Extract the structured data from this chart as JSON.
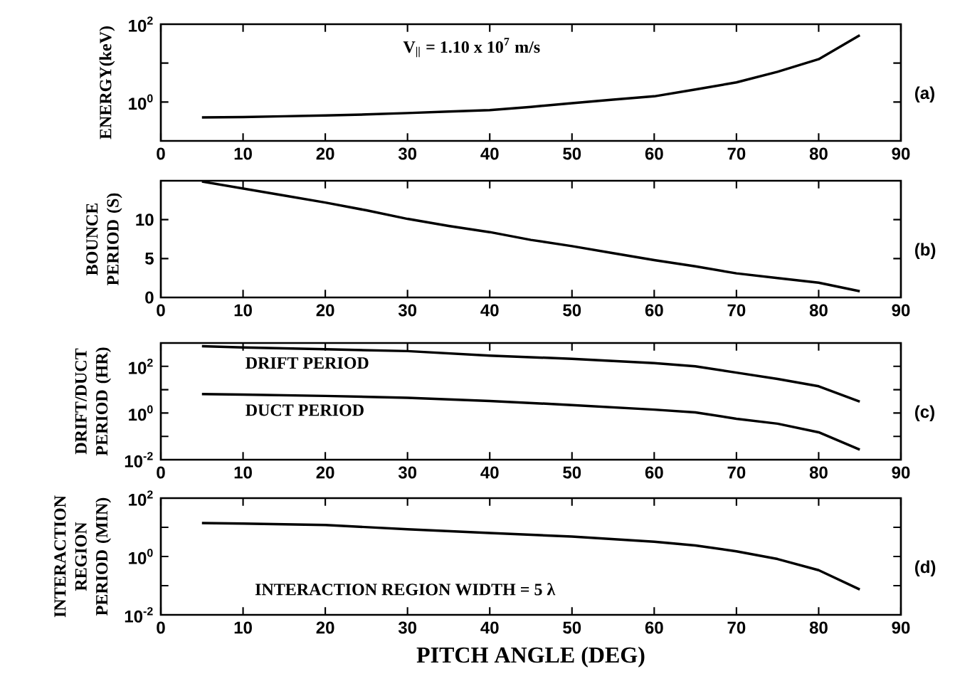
{
  "chart_data": [
    {
      "type": "line",
      "title": "(a)",
      "ylabel": "ENERGY(keV)",
      "annotations": [
        "V$_{||}$ = 1.10 x 10$^{7}$ m/s"
      ],
      "log": "y",
      "x": [
        5,
        10,
        15,
        20,
        25,
        30,
        35,
        40,
        45,
        50,
        55,
        60,
        65,
        70,
        75,
        80,
        85
      ],
      "values": [
        0.4,
        0.41,
        0.43,
        0.45,
        0.48,
        0.52,
        0.57,
        0.62,
        0.75,
        0.93,
        1.15,
        1.4,
        2.1,
        3.2,
        6,
        12.6,
        52
      ],
      "color": "#000000",
      "xlim": [
        0,
        90
      ],
      "xticks": [
        0,
        10,
        20,
        30,
        40,
        50,
        60,
        70,
        80,
        90
      ],
      "ylim": [
        0.1,
        100
      ],
      "yticks": [
        {
          "value": 0.1,
          "label": null
        },
        {
          "value": 1,
          "label": "10$^{0}$"
        },
        {
          "value": 10,
          "label": null
        },
        {
          "value": 100,
          "label": "10$^{2}$"
        }
      ]
    },
    {
      "type": "line",
      "title": "(b)",
      "ylabel": "BOUNCE PERIOD (S)",
      "x": [
        5,
        10,
        15,
        20,
        25,
        30,
        35,
        40,
        45,
        50,
        55,
        60,
        65,
        70,
        75,
        80,
        85
      ],
      "values": [
        14.9,
        14.0,
        13.1,
        12.2,
        11.2,
        10.1,
        9.2,
        8.4,
        7.4,
        6.6,
        5.7,
        4.8,
        4.0,
        3.1,
        2.5,
        1.9,
        0.8
      ],
      "color": "#000000",
      "xlim": [
        0,
        90
      ],
      "xticks": [
        0,
        10,
        20,
        30,
        40,
        50,
        60,
        70,
        80,
        90
      ],
      "ylim": [
        0,
        15
      ],
      "yticks": [
        0,
        5,
        10
      ]
    },
    {
      "type": "line",
      "title": "(c)",
      "ylabel": "DRIFT/DUCT PERIOD (HR)",
      "log": "y",
      "x": [
        5,
        10,
        20,
        30,
        40,
        50,
        60,
        65,
        70,
        75,
        80,
        85
      ],
      "series": [
        {
          "name": "DRIFT PERIOD",
          "color": "#000000",
          "values": [
            730,
            650,
            540,
            450,
            290,
            210,
            137,
            100,
            54,
            29,
            14,
            3.1
          ]
        },
        {
          "name": "DUCT PERIOD",
          "color": "#000000",
          "values": [
            6.5,
            6.2,
            5.4,
            4.5,
            3.3,
            2.2,
            1.4,
            1.07,
            0.57,
            0.35,
            0.15,
            0.027
          ]
        }
      ],
      "xlim": [
        0,
        90
      ],
      "xticks": [
        0,
        10,
        20,
        30,
        40,
        50,
        60,
        70,
        80,
        90
      ],
      "ylim": [
        0.01,
        1000
      ],
      "yticks": [
        {
          "value": 0.01,
          "label": "10$^{-2}$"
        },
        {
          "value": 0.1,
          "label": null
        },
        {
          "value": 1,
          "label": "10$^{0}$"
        },
        {
          "value": 10,
          "label": null
        },
        {
          "value": 100,
          "label": "10$^{2}$"
        },
        {
          "value": 1000,
          "label": null
        }
      ]
    },
    {
      "type": "line",
      "title": "(d)",
      "ylabel": "INTERACTION REGION PERIOD (MIN)",
      "xlabel": "PITCH ANGLE (DEG)",
      "annotations": [
        "INTERACTION REGION WIDTH = 5 λ"
      ],
      "log": "y",
      "x": [
        5,
        10,
        20,
        30,
        40,
        50,
        60,
        65,
        70,
        75,
        80,
        85
      ],
      "values": [
        14,
        13.5,
        12,
        8.6,
        6.4,
        4.8,
        3.2,
        2.4,
        1.5,
        0.82,
        0.34,
        0.074
      ],
      "color": "#000000",
      "xlim": [
        0,
        90
      ],
      "xticks": [
        0,
        10,
        20,
        30,
        40,
        50,
        60,
        70,
        80,
        90
      ],
      "ylim": [
        0.01,
        100
      ],
      "yticks": [
        {
          "value": 0.01,
          "label": "10$^{-2}$"
        },
        {
          "value": 0.1,
          "label": null
        },
        {
          "value": 1,
          "label": "10$^{0}$"
        },
        {
          "value": 10,
          "label": null
        },
        {
          "value": 100,
          "label": "10$^{2}$"
        }
      ]
    }
  ]
}
